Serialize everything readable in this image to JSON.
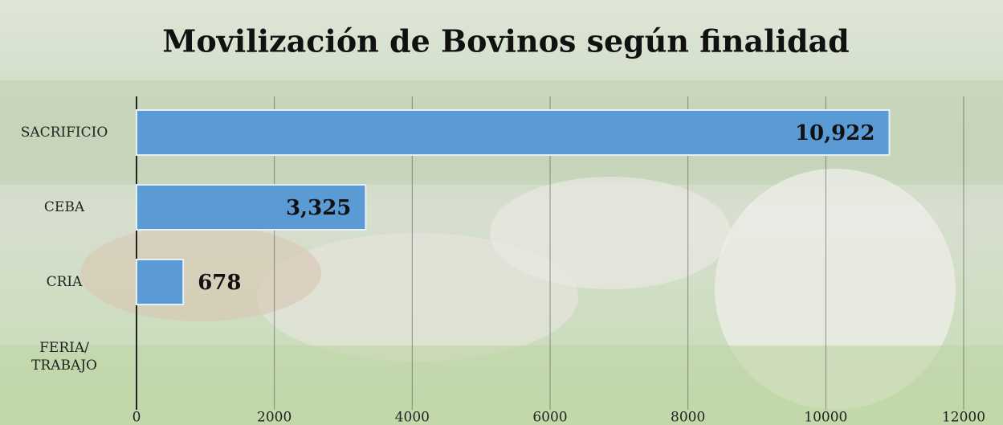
{
  "chart_data": {
    "type": "bar",
    "orientation": "horizontal",
    "title": "Movilización de Bovinos según finalidad",
    "categories": [
      "SACRIFICIO",
      "CEBA",
      "CRIA",
      "FERIA/ TRABAJO"
    ],
    "values": [
      10922,
      3325,
      678,
      null
    ],
    "value_labels": [
      "10,922",
      "3,325",
      "678",
      null
    ],
    "color": "#5b9bd5",
    "xlim": [
      0,
      12000
    ],
    "xticks": [
      0,
      2000,
      4000,
      6000,
      8000,
      10000,
      12000
    ],
    "grid": true
  }
}
